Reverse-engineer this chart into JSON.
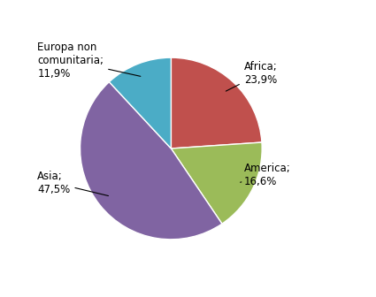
{
  "slices": [
    {
      "label": "Africa",
      "value": 23.9,
      "color": "#c0504d"
    },
    {
      "label": "America",
      "value": 16.6,
      "color": "#9bbb59"
    },
    {
      "label": "Asia",
      "value": 47.5,
      "color": "#8064a2"
    },
    {
      "label": "Europa non\ncomunitaria",
      "value": 11.9,
      "color": "#4bacc6"
    }
  ],
  "background_color": "#ffffff",
  "label_fontsize": 8.5,
  "startangle": 90
}
